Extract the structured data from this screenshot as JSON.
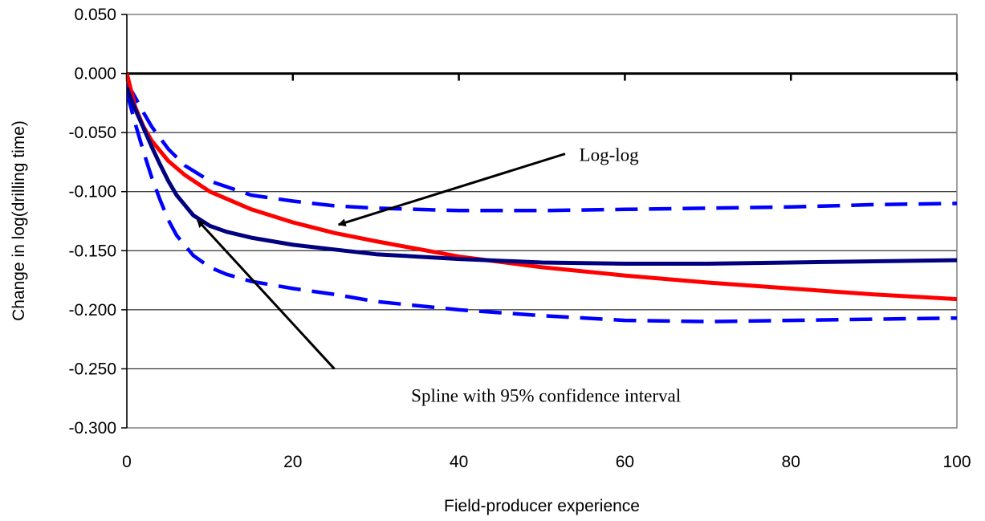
{
  "chart_data": {
    "type": "line",
    "title": "",
    "xlabel": "Field-producer  experience",
    "ylabel": "Change  in  log(drilling  time)",
    "xlim": [
      0,
      100
    ],
    "ylim": [
      -0.3,
      0.05
    ],
    "x_ticks": [
      0,
      20,
      40,
      60,
      80,
      100
    ],
    "x_tick_labels": [
      "0",
      "20",
      "40",
      "60",
      "80",
      "100"
    ],
    "y_ticks": [
      0.05,
      0,
      -0.05,
      -0.1,
      -0.15,
      -0.2,
      -0.25,
      -0.3
    ],
    "y_tick_labels": [
      "0.050",
      "0.000",
      "-0.050",
      "-0.100",
      "-0.150",
      "-0.200",
      "-0.250",
      "-0.300"
    ],
    "grid": "horizontal",
    "legend": "none",
    "series": [
      {
        "key": "log-log",
        "color": "#ff0000",
        "style": "solid",
        "x": [
          0,
          1,
          2,
          3,
          5,
          7,
          10,
          15,
          20,
          25,
          30,
          40,
          50,
          60,
          70,
          80,
          90,
          100
        ],
        "y": [
          0.0,
          -0.028,
          -0.045,
          -0.057,
          -0.074,
          -0.086,
          -0.1,
          -0.115,
          -0.126,
          -0.135,
          -0.142,
          -0.155,
          -0.164,
          -0.171,
          -0.177,
          -0.182,
          -0.187,
          -0.191
        ]
      },
      {
        "key": "spline",
        "color": "#000080",
        "style": "solid",
        "x": [
          0,
          1,
          2,
          3,
          4,
          5,
          6,
          8,
          10,
          12,
          15,
          20,
          25,
          30,
          40,
          50,
          60,
          70,
          80,
          90,
          100
        ],
        "y": [
          -0.012,
          -0.03,
          -0.046,
          -0.062,
          -0.077,
          -0.091,
          -0.103,
          -0.12,
          -0.129,
          -0.134,
          -0.139,
          -0.145,
          -0.149,
          -0.153,
          -0.157,
          -0.16,
          -0.161,
          -0.161,
          -0.16,
          -0.159,
          -0.158
        ]
      },
      {
        "key": "spline-upper-95",
        "color": "#0000ff",
        "style": "dashed",
        "x": [
          0,
          1,
          2,
          3,
          5,
          7,
          10,
          15,
          20,
          25,
          30,
          40,
          50,
          60,
          70,
          80,
          90,
          100
        ],
        "y": [
          -0.008,
          -0.02,
          -0.033,
          -0.045,
          -0.064,
          -0.078,
          -0.091,
          -0.103,
          -0.108,
          -0.112,
          -0.114,
          -0.116,
          -0.116,
          -0.115,
          -0.114,
          -0.113,
          -0.111,
          -0.11
        ]
      },
      {
        "key": "spline-lower-95",
        "color": "#0000ff",
        "style": "dashed",
        "x": [
          0,
          1,
          2,
          3,
          4,
          5,
          6,
          8,
          10,
          12,
          15,
          20,
          25,
          30,
          40,
          50,
          60,
          70,
          80,
          90,
          100
        ],
        "y": [
          -0.016,
          -0.042,
          -0.066,
          -0.088,
          -0.107,
          -0.124,
          -0.137,
          -0.154,
          -0.164,
          -0.17,
          -0.176,
          -0.182,
          -0.187,
          -0.193,
          -0.2,
          -0.205,
          -0.209,
          -0.21,
          -0.209,
          -0.208,
          -0.207
        ]
      }
    ],
    "annotations": [
      {
        "key": "log-log",
        "text": "Log-log",
        "text_at": [
          54.5,
          -0.074
        ],
        "arrow_from": [
          52.8,
          -0.068
        ],
        "arrow_to": [
          25.5,
          -0.128
        ],
        "align": "start"
      },
      {
        "key": "spline",
        "text": "Spline with 95% confidence interval",
        "text_at": [
          50.5,
          -0.278
        ],
        "arrow_from": [
          25,
          -0.25
        ],
        "arrow_to": [
          8.5,
          -0.124
        ],
        "align": "middle"
      }
    ]
  }
}
